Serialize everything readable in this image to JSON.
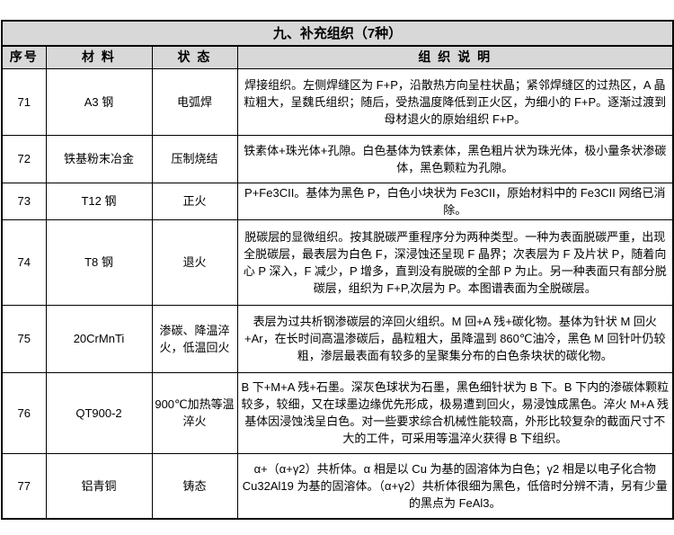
{
  "colors": {
    "header_bg": "#d8d8d8",
    "border": "#000000",
    "text": "#000000",
    "page_bg": "#ffffff"
  },
  "table": {
    "title": "九、补充组织（7种）",
    "headers": {
      "id": "序号",
      "material": "材 料",
      "state": "状 态",
      "description": "组 织 说 明"
    },
    "rows": [
      {
        "id": "71",
        "material": "A3 钢",
        "state": "电弧焊",
        "description": "焊接组织。左侧焊缝区为 F+P，沿散热方向呈柱状晶；紧邻焊缝区的过热区，A 晶粒粗大，呈魏氏组织；随后，受热温度降低到正火区，为细小的 F+P。逐渐过渡到母材退火的原始组织 F+P。"
      },
      {
        "id": "72",
        "material": "铁基粉末冶金",
        "state": "压制烧结",
        "description": "铁素体+珠光体+孔隙。白色基体为铁素体，黑色粗片状为珠光体，极小量条状渗碳体，黑色颗粒为孔隙。"
      },
      {
        "id": "73",
        "material": "T12 钢",
        "state": "正火",
        "description": "P+Fe3CII。基体为黑色 P，白色小块状为 Fe3CII，原始材料中的 Fe3CII 网络已消除。"
      },
      {
        "id": "74",
        "material": "T8 钢",
        "state": "退火",
        "description": "脱碳层的显微组织。按其脱碳严重程序分为两种类型。一种为表面脱碳严重，出现全脱碳层，最表层为白色 F，深浸蚀还呈现 F 晶界；次表层为 F 及片状 P，随着向心 P 深入，F 减少，P 增多，直到没有脱碳的全部 P 为止。另一种表面只有部分脱碳层，组织为 F+P,次层为 P。本图谱表面为全脱碳层。"
      },
      {
        "id": "75",
        "material": "20CrMnTi",
        "state": "渗碳、降温淬火，低温回火",
        "description": "表层为过共析钢渗碳层的淬回火组织。M 回+A 残+碳化物。基体为针状 M 回火+Ar，在长时间高温渗碳后，晶粒粗大，虽降温到 860℃油冷，黑色 M 回针叶仍较粗，渗层最表面有较多的呈聚集分布的白色条块状的碳化物。"
      },
      {
        "id": "76",
        "material": "QT900-2",
        "state": "900℃加热等温淬火",
        "description": "B 下+M+A 残+石墨。深灰色球状为石墨，黑色细针状为 B 下。B 下内的渗碳体颗粒较多，较细，又在球墨边缘优先形成，极易遭到回火，易浸蚀成黑色。淬火 M+A 残基体因浸蚀浅呈白色。对一些要求综合机械性能较高，外形比较复杂的截面尺寸不大的工件，可采用等温淬火获得 B 下组织。"
      },
      {
        "id": "77",
        "material": "铝青铜",
        "state": "铸态",
        "description": "α+（α+γ2）共析体。α 相是以 Cu 为基的固溶体为白色；γ2 相是以电子化合物 Cu32Al19 为基的固溶体。（α+γ2）共析体很细为黑色，低倍时分辨不清，另有少量的黑点为 FeAl3。"
      }
    ]
  }
}
